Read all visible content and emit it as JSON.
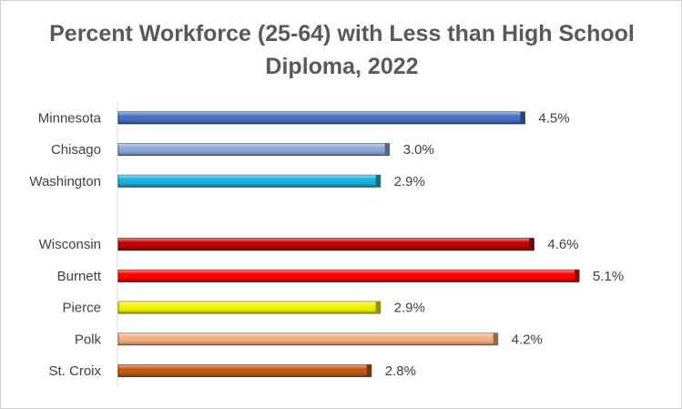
{
  "chart_data": {
    "type": "bar",
    "orientation": "horizontal",
    "title": "Percent Workforce (25-64) with Less than High School Diploma, 2022",
    "xlabel": "",
    "ylabel": "",
    "xlim": [
      0,
      5.5
    ],
    "grid": false,
    "legend": "none",
    "value_format": "percent, 1 decimal",
    "categories": [
      "Minnesota",
      "Chisago",
      "Washington",
      "",
      "Wisconsin",
      "Burnett",
      "Pierce",
      "Polk",
      "St. Croix"
    ],
    "values": [
      4.5,
      3.0,
      2.9,
      null,
      4.6,
      5.1,
      2.9,
      4.2,
      2.8
    ],
    "value_labels": [
      "4.5%",
      "3.0%",
      "2.9%",
      "",
      "4.6%",
      "5.1%",
      "2.9%",
      "4.2%",
      "2.8%"
    ],
    "colors": [
      "#4472c4",
      "#8ea9db",
      "#1ab0e0",
      "",
      "#c00000",
      "#ff0000",
      "#f2f200",
      "#f4b183",
      "#c55a11"
    ]
  }
}
